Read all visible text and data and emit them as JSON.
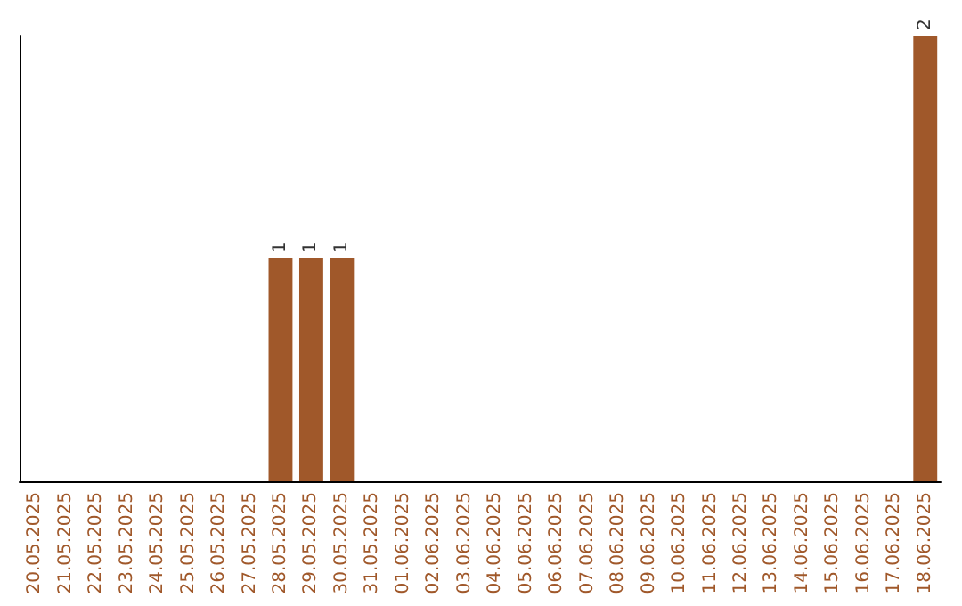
{
  "chart_data": {
    "type": "bar",
    "categories": [
      "20.05.2025",
      "21.05.2025",
      "22.05.2025",
      "23.05.2025",
      "24.05.2025",
      "25.05.2025",
      "26.05.2025",
      "27.05.2025",
      "28.05.2025",
      "29.05.2025",
      "30.05.2025",
      "31.05.2025",
      "01.06.2025",
      "02.06.2025",
      "03.06.2025",
      "04.06.2025",
      "05.06.2025",
      "06.06.2025",
      "07.06.2025",
      "08.06.2025",
      "09.06.2025",
      "10.06.2025",
      "11.06.2025",
      "12.06.2025",
      "13.06.2025",
      "14.06.2025",
      "15.06.2025",
      "16.06.2025",
      "17.06.2025",
      "18.06.2025"
    ],
    "values": [
      0,
      0,
      0,
      0,
      0,
      0,
      0,
      0,
      1,
      1,
      1,
      0,
      0,
      0,
      0,
      0,
      0,
      0,
      0,
      0,
      0,
      0,
      0,
      0,
      0,
      0,
      0,
      0,
      0,
      2
    ],
    "value_labels": [
      null,
      null,
      null,
      null,
      null,
      null,
      null,
      null,
      "1",
      "1",
      "1",
      null,
      null,
      null,
      null,
      null,
      null,
      null,
      null,
      null,
      null,
      null,
      null,
      null,
      null,
      null,
      null,
      null,
      null,
      "2"
    ],
    "color": "#a0582a",
    "ylim": [
      0,
      2
    ],
    "grid": false,
    "tick_labels": "x"
  }
}
